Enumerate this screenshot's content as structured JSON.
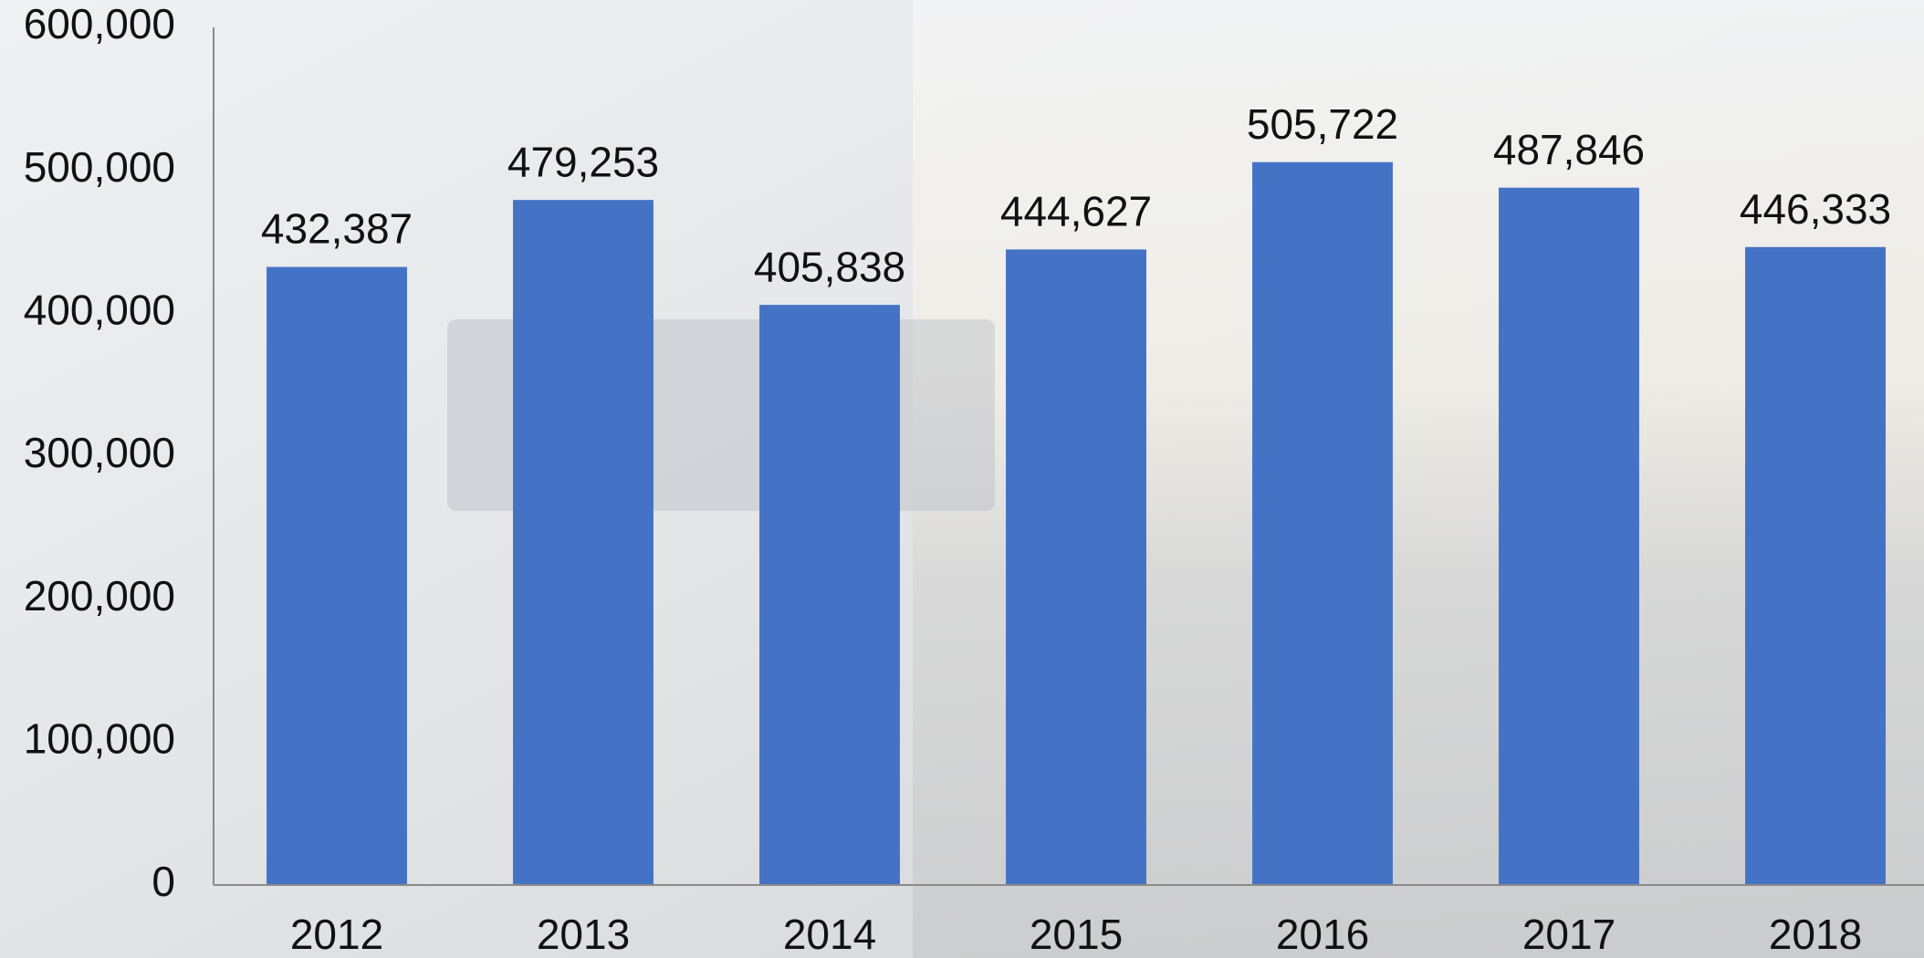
{
  "chart_data": {
    "type": "bar",
    "categories": [
      "2012",
      "2013",
      "2014",
      "2015",
      "2016",
      "2017",
      "2018"
    ],
    "values": [
      432387,
      479253,
      405838,
      444627,
      505722,
      487846,
      446333
    ],
    "value_labels": [
      "432,387",
      "479,253",
      "405,838",
      "444,627",
      "505,722",
      "487,846",
      "446,333"
    ],
    "color": "#4472c4",
    "ylim": [
      0,
      600000
    ],
    "yticks": [
      0,
      {
        "value": 100000,
        "label": "100,000"
      },
      {
        "value": 200000,
        "label": "200,000"
      },
      {
        "value": 300000,
        "label": "300,000"
      },
      {
        "value": 400000,
        "label": "400,000"
      },
      {
        "value": 500000,
        "label": "500,000"
      },
      {
        "value": 600000,
        "label": "600,000"
      }
    ],
    "grid": false
  }
}
